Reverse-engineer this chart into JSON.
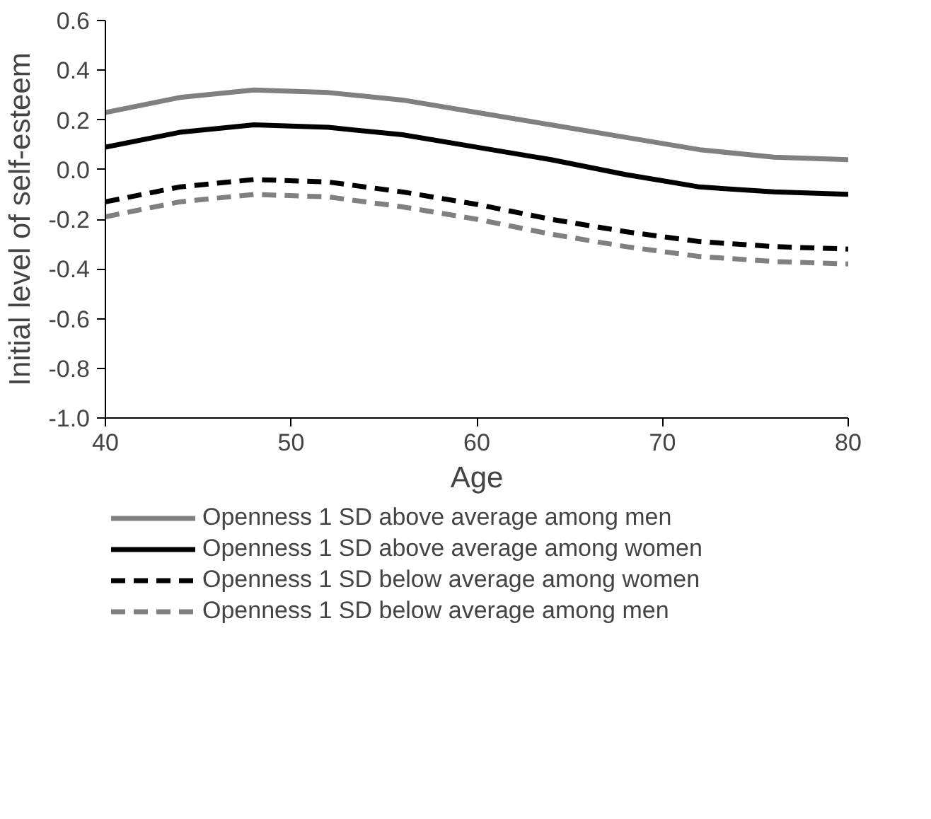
{
  "chart_data": {
    "type": "line",
    "xlabel": "Age",
    "ylabel": "Initial level of self-esteem",
    "x": [
      40,
      44,
      48,
      52,
      56,
      60,
      64,
      68,
      72,
      76,
      80
    ],
    "xlim": [
      40,
      80
    ],
    "xticks": [
      40,
      50,
      60,
      70,
      80
    ],
    "ylim": [
      -1.0,
      0.6
    ],
    "yticks": [
      {
        "value": -1.0,
        "label": "-1.0"
      },
      {
        "value": -0.8,
        "label": "-0.8"
      },
      {
        "value": -0.6,
        "label": "-0.6"
      },
      {
        "value": -0.4,
        "label": "-0.4"
      },
      {
        "value": -0.2,
        "label": "-0.2"
      },
      {
        "value": 0,
        "label": "0.0"
      },
      {
        "value": 0.2,
        "label": "0.2"
      },
      {
        "value": 0.4,
        "label": "0.4"
      },
      {
        "value": 0.6,
        "label": "0.6"
      }
    ],
    "grid": false,
    "legend": "bottom",
    "series": [
      {
        "name": "Openness 1 SD above average among men",
        "color": "#808080",
        "line_style": "solid",
        "values": [
          0.23,
          0.29,
          0.32,
          0.31,
          0.28,
          0.23,
          0.18,
          0.13,
          0.08,
          0.05,
          0.04
        ]
      },
      {
        "name": "Openness 1 SD above average among women",
        "color": "#000000",
        "line_style": "solid",
        "values": [
          0.09,
          0.15,
          0.18,
          0.17,
          0.14,
          0.09,
          0.04,
          -0.02,
          -0.07,
          -0.09,
          -0.1
        ]
      },
      {
        "name": "Openness 1 SD below average among women",
        "color": "#000000",
        "line_style": "dashed",
        "values": [
          -0.13,
          -0.07,
          -0.04,
          -0.05,
          -0.09,
          -0.14,
          -0.2,
          -0.25,
          -0.29,
          -0.31,
          -0.32
        ]
      },
      {
        "name": "Openness 1 SD below average among men",
        "color": "#808080",
        "line_style": "dashed",
        "values": [
          -0.19,
          -0.13,
          -0.1,
          -0.11,
          -0.15,
          -0.2,
          -0.26,
          -0.31,
          -0.35,
          -0.37,
          -0.38
        ]
      }
    ]
  }
}
